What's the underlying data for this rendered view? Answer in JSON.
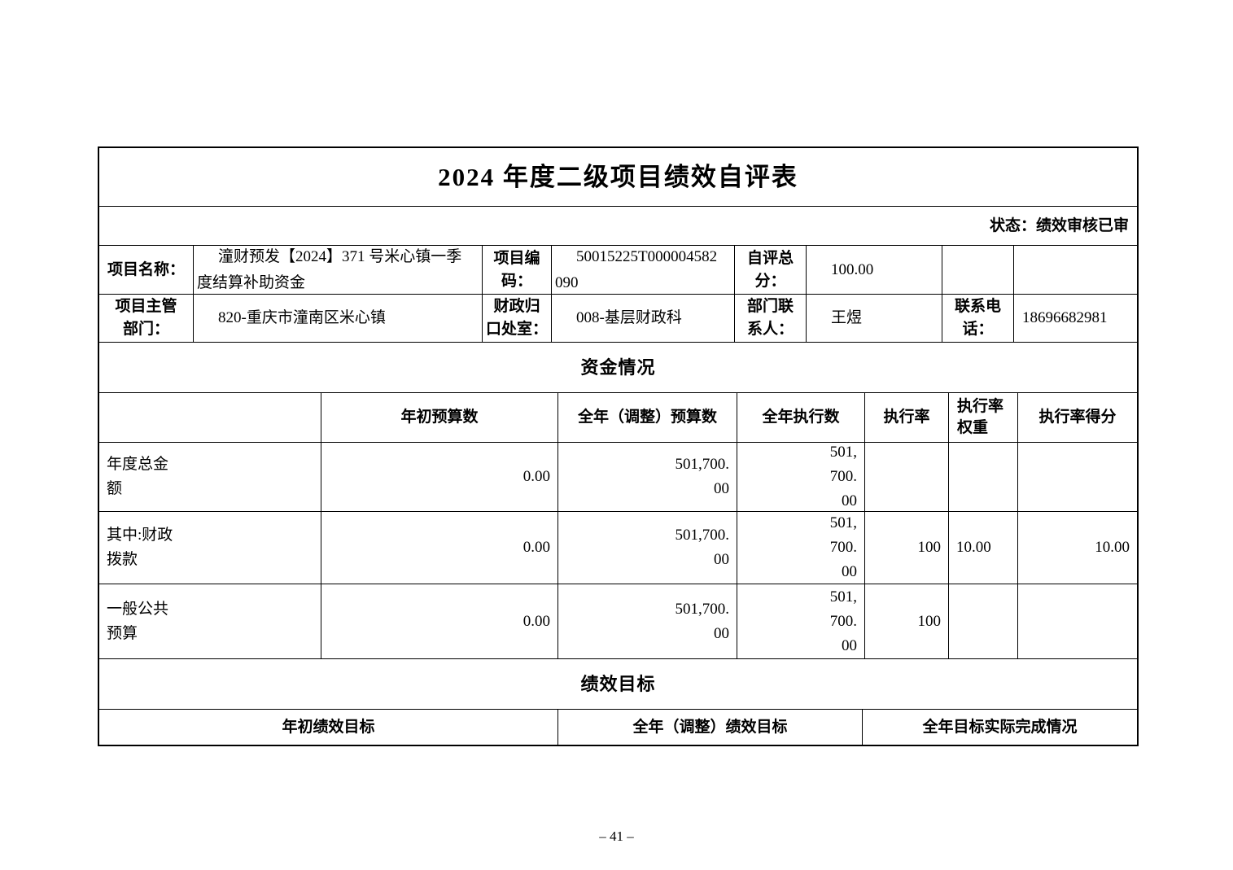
{
  "colors": {
    "text": "#000000",
    "background": "#ffffff",
    "border": "#000000"
  },
  "title": "2024 年度二级项目绩效自评表",
  "status_line": "状态：绩效审核已审",
  "header_table": {
    "rows": [
      {
        "cells": [
          "项目名称：",
          "潼财预发【2024】371 号米心镇一季\n度结算补助资金",
          "项目编\n码：",
          "50015225T000004582\n090",
          "自评总\n分：",
          "100.00",
          "",
          ""
        ]
      },
      {
        "cells": [
          "项目主管\n部门：",
          "820-重庆市潼南区米心镇",
          "财政归\n口处室：",
          "008-基层财政科",
          "部门联\n系人：",
          "王煜",
          "联系电\n话：",
          "18696682981"
        ]
      }
    ]
  },
  "funding": {
    "section_title": "资金情况",
    "header_cells": [
      "",
      "年初预算数",
      "全年（调整）预算数",
      "全年执行数",
      "执行率",
      "执行率\n权重",
      "执行率得分"
    ],
    "rows": [
      {
        "cells": [
          "年度总金\n额",
          "0.00",
          "501,700.\n00",
          "501,\n700.\n00",
          "",
          "",
          ""
        ]
      },
      {
        "cells": [
          "其中:财政\n拨款",
          "0.00",
          "501,700.\n00",
          "501,\n700.\n00",
          "100",
          "10.00",
          "10.00"
        ]
      },
      {
        "cells": [
          "一般公共\n预算",
          "0.00",
          "501,700.\n00",
          "501,\n700.\n00",
          "100",
          "",
          ""
        ]
      }
    ]
  },
  "performance": {
    "section_title": "绩效目标",
    "header_cells": [
      "年初绩效目标",
      "全年（调整）绩效目标",
      "全年目标实际完成情况"
    ]
  },
  "page_footer": {
    "page_number": "– 41 –"
  }
}
